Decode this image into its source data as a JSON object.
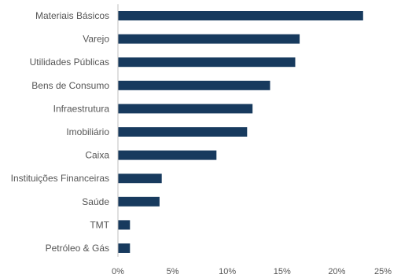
{
  "chart_data": {
    "type": "bar",
    "orientation": "horizontal",
    "categories": [
      "Materiais Básicos",
      "Varejo",
      "Utilidades Públicas",
      "Bens de Consumo",
      "Infraestrutura",
      "Imobiliário",
      "Caixa",
      "Instituições Financeiras",
      "Saúde",
      "TMT",
      "Petróleo & Gás"
    ],
    "values": [
      22.4,
      16.6,
      16.2,
      13.9,
      12.3,
      11.8,
      9.0,
      4.0,
      3.8,
      1.1,
      1.1
    ],
    "xlim": [
      0,
      25
    ],
    "xticks": [
      0,
      5,
      10,
      15,
      20,
      25
    ],
    "xtick_labels": [
      "0%",
      "5%",
      "10%",
      "15%",
      "20%",
      "25%"
    ],
    "title": "",
    "xlabel": "",
    "ylabel": "",
    "bar_color": "#173a5e",
    "grid": false
  }
}
